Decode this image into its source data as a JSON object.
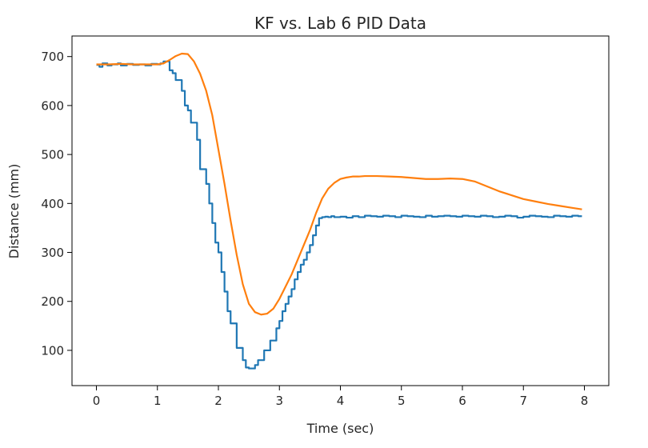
{
  "chart_data": {
    "type": "line",
    "title": "KF vs. Lab 6 PID Data",
    "xlabel": "Time (sec)",
    "ylabel": "Distance (mm)",
    "xlim": [
      -0.4,
      8.4
    ],
    "ylim": [
      28,
      742
    ],
    "xticks": [
      0,
      1,
      2,
      3,
      4,
      5,
      6,
      7,
      8
    ],
    "yticks": [
      100,
      200,
      300,
      400,
      500,
      600,
      700
    ],
    "grid": false,
    "legend": "none",
    "series": [
      {
        "color": "#1f77b4",
        "style": "step",
        "x": [
          0,
          0.05,
          0.1,
          0.18,
          0.25,
          0.35,
          0.4,
          0.5,
          0.6,
          0.7,
          0.8,
          0.9,
          1.0,
          1.05,
          1.1,
          1.15,
          1.2,
          1.25,
          1.3,
          1.35,
          1.4,
          1.45,
          1.5,
          1.55,
          1.6,
          1.65,
          1.7,
          1.75,
          1.8,
          1.85,
          1.9,
          1.95,
          2.0,
          2.05,
          2.1,
          2.15,
          2.2,
          2.25,
          2.3,
          2.35,
          2.4,
          2.45,
          2.5,
          2.55,
          2.6,
          2.65,
          2.7,
          2.75,
          2.8,
          2.85,
          2.9,
          2.95,
          3.0,
          3.05,
          3.1,
          3.15,
          3.2,
          3.25,
          3.3,
          3.35,
          3.4,
          3.45,
          3.5,
          3.55,
          3.6,
          3.65,
          3.7,
          3.75,
          3.8,
          3.85,
          3.9,
          4.0,
          4.1,
          4.2,
          4.3,
          4.4,
          4.5,
          4.6,
          4.7,
          4.8,
          4.9,
          5.0,
          5.1,
          5.2,
          5.3,
          5.4,
          5.5,
          5.6,
          5.7,
          5.8,
          5.9,
          6.0,
          6.1,
          6.2,
          6.3,
          6.4,
          6.5,
          6.6,
          6.7,
          6.8,
          6.9,
          7.0,
          7.1,
          7.2,
          7.3,
          7.4,
          7.5,
          7.6,
          7.7,
          7.8,
          7.9,
          7.96
        ],
        "y": [
          683,
          679,
          686,
          682,
          684,
          686,
          682,
          685,
          683,
          684,
          682,
          685,
          684,
          686,
          690,
          690,
          672,
          666,
          652,
          652,
          630,
          600,
          590,
          565,
          565,
          530,
          470,
          470,
          440,
          400,
          360,
          320,
          300,
          260,
          220,
          180,
          155,
          155,
          105,
          105,
          80,
          65,
          63,
          63,
          70,
          80,
          80,
          100,
          100,
          120,
          120,
          145,
          160,
          180,
          195,
          210,
          225,
          245,
          260,
          275,
          285,
          300,
          315,
          335,
          355,
          370,
          372,
          373,
          372,
          374,
          372,
          373,
          371,
          374,
          372,
          375,
          374,
          373,
          375,
          374,
          372,
          375,
          374,
          373,
          372,
          375,
          373,
          374,
          375,
          374,
          373,
          375,
          374,
          373,
          375,
          374,
          372,
          373,
          375,
          374,
          371,
          373,
          375,
          374,
          373,
          372,
          375,
          374,
          373,
          375,
          374,
          374
        ]
      },
      {
        "color": "#ff7f0e",
        "style": "line",
        "x": [
          0,
          0.2,
          0.4,
          0.6,
          0.8,
          1.0,
          1.1,
          1.2,
          1.3,
          1.4,
          1.5,
          1.6,
          1.7,
          1.8,
          1.9,
          2.0,
          2.1,
          2.2,
          2.3,
          2.4,
          2.5,
          2.6,
          2.7,
          2.8,
          2.9,
          3.0,
          3.1,
          3.2,
          3.3,
          3.4,
          3.5,
          3.6,
          3.7,
          3.8,
          3.9,
          4.0,
          4.1,
          4.2,
          4.3,
          4.4,
          4.6,
          4.8,
          5.0,
          5.2,
          5.4,
          5.6,
          5.8,
          6.0,
          6.2,
          6.4,
          6.6,
          6.8,
          7.0,
          7.2,
          7.4,
          7.6,
          7.8,
          7.96
        ],
        "y": [
          684,
          684,
          685,
          684,
          684,
          684,
          686,
          693,
          701,
          706,
          705,
          690,
          665,
          630,
          580,
          510,
          440,
          365,
          295,
          235,
          195,
          178,
          173,
          175,
          185,
          205,
          230,
          255,
          285,
          315,
          345,
          380,
          410,
          430,
          442,
          450,
          453,
          455,
          455,
          456,
          456,
          455,
          454,
          452,
          450,
          450,
          451,
          450,
          445,
          435,
          425,
          417,
          409,
          404,
          399,
          395,
          391,
          388
        ]
      }
    ]
  }
}
